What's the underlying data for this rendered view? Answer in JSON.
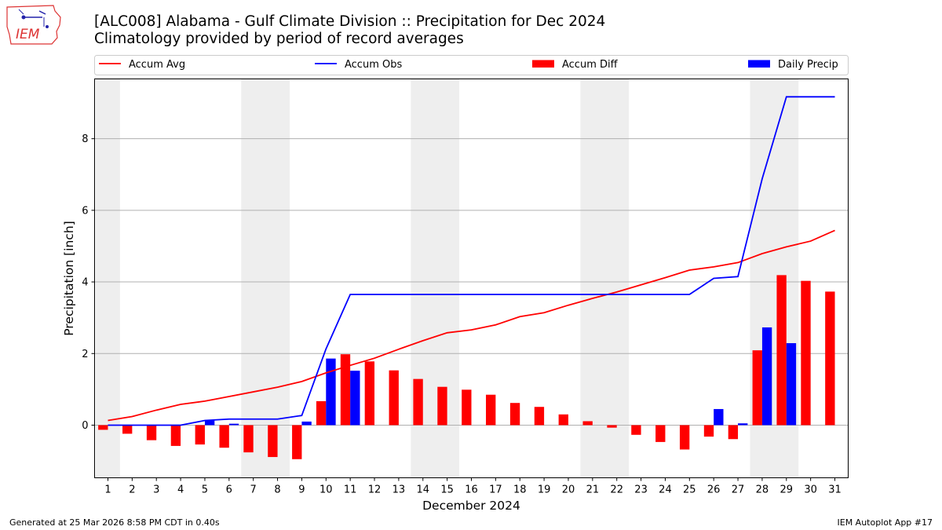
{
  "header": {
    "title": "[ALC008] Alabama - Gulf Climate Division :: Precipitation for Dec 2024",
    "subtitle": "Climatology provided by period of record averages",
    "logo_text": "IEM"
  },
  "footer": {
    "generated": "Generated at 25 Mar 2026 8:58 PM CDT in 0.40s",
    "app": "IEM Autoplot App #17"
  },
  "colors": {
    "avg": "#ff0000",
    "obs": "#0000ff",
    "diff": "#ff0000",
    "daily": "#0000ff",
    "weekend_shade": "#eeeeee",
    "grid": "#b0b0b0"
  },
  "chart_data": {
    "type": "bar",
    "title": "[ALC008] Alabama - Gulf Climate Division :: Precipitation for Dec 2024",
    "xlabel": "December 2024",
    "ylabel": "Precipitation [inch]",
    "ylim": [
      -1.47,
      9.67
    ],
    "yticks": [
      0,
      2,
      4,
      6,
      8
    ],
    "grid": "horizontal",
    "legend_position": "top",
    "x": [
      1,
      2,
      3,
      4,
      5,
      6,
      7,
      8,
      9,
      10,
      11,
      12,
      13,
      14,
      15,
      16,
      17,
      18,
      19,
      20,
      21,
      22,
      23,
      24,
      25,
      26,
      27,
      28,
      29,
      30,
      31
    ],
    "shaded_days": [
      [
        1,
        1
      ],
      [
        7,
        8
      ],
      [
        14,
        15
      ],
      [
        21,
        22
      ],
      [
        28,
        29
      ]
    ],
    "series": [
      {
        "name": "Accum Avg",
        "kind": "line",
        "values": [
          0.13,
          0.24,
          0.42,
          0.58,
          0.67,
          0.8,
          0.93,
          1.06,
          1.22,
          1.46,
          1.67,
          1.87,
          2.12,
          2.36,
          2.58,
          2.66,
          2.8,
          3.03,
          3.14,
          3.35,
          3.54,
          3.72,
          3.92,
          4.12,
          4.33,
          4.42,
          4.54,
          4.79,
          4.98,
          5.14,
          5.44
        ]
      },
      {
        "name": "Accum Obs",
        "kind": "line",
        "values": [
          0,
          0,
          0,
          0,
          0.13,
          0.17,
          0.17,
          0.17,
          0.27,
          2.13,
          3.65,
          3.65,
          3.65,
          3.65,
          3.65,
          3.65,
          3.65,
          3.65,
          3.65,
          3.65,
          3.65,
          3.65,
          3.65,
          3.65,
          3.65,
          4.1,
          4.15,
          6.88,
          9.17,
          9.17,
          9.17
        ]
      },
      {
        "name": "Accum Diff",
        "kind": "bar",
        "values": [
          -0.13,
          -0.24,
          -0.42,
          -0.58,
          -0.54,
          -0.63,
          -0.76,
          -0.89,
          -0.95,
          0.67,
          1.98,
          1.78,
          1.53,
          1.29,
          1.07,
          0.99,
          0.85,
          0.62,
          0.51,
          0.3,
          0.11,
          -0.07,
          -0.27,
          -0.47,
          -0.68,
          -0.32,
          -0.39,
          2.09,
          4.19,
          4.03,
          3.73
        ]
      },
      {
        "name": "Daily Precip",
        "kind": "bar",
        "values": [
          0,
          0,
          0,
          0,
          0.13,
          0.04,
          0,
          0,
          0.1,
          1.86,
          1.52,
          0,
          0,
          0,
          0,
          0,
          0,
          0,
          0,
          0,
          0,
          0,
          0,
          0,
          0,
          0.45,
          0.05,
          2.73,
          2.29,
          0,
          0
        ]
      }
    ]
  }
}
